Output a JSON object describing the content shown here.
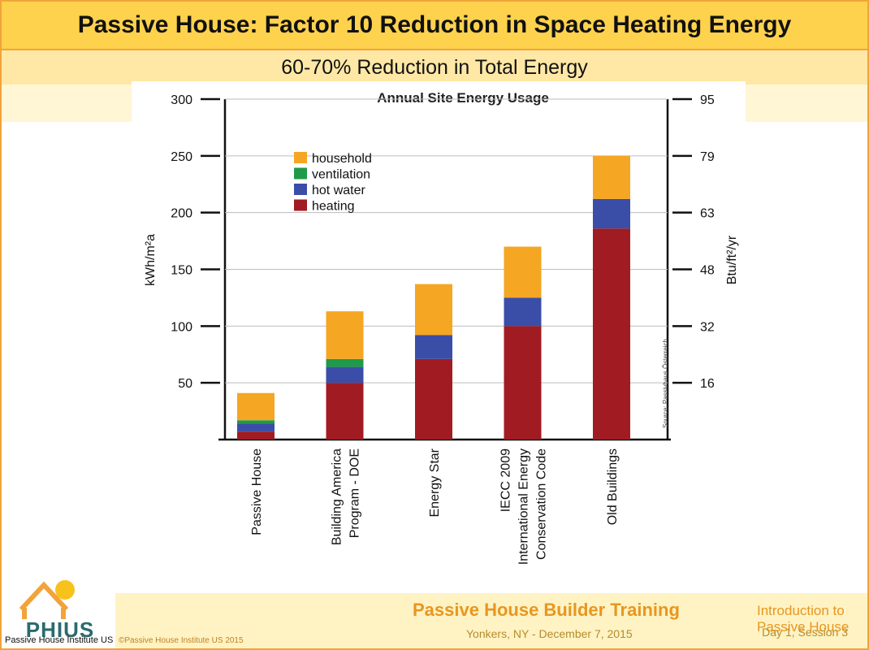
{
  "slide": {
    "title": "Passive House: Factor 10 Reduction in Space Heating Energy",
    "subtitle": "60-70% Reduction in Total Energy"
  },
  "chart_data": {
    "type": "bar",
    "stacked": true,
    "title": "Annual Site Energy Usage",
    "categories": [
      [
        "Passive House"
      ],
      [
        "Building America",
        "Program - DOE"
      ],
      [
        "Energy Star"
      ],
      [
        "IECC 2009",
        "International Energy",
        "Conservation Code"
      ],
      [
        "Old Buildings"
      ]
    ],
    "series": [
      {
        "name": "heating",
        "color": "#a01c22",
        "values": [
          7,
          50,
          71,
          100,
          186
        ]
      },
      {
        "name": "hot water",
        "color": "#3a4ea8",
        "values": [
          7,
          14,
          21,
          25,
          26
        ]
      },
      {
        "name": "ventilation",
        "color": "#1f9a4a",
        "values": [
          3,
          7,
          0,
          0,
          0
        ]
      },
      {
        "name": "household",
        "color": "#f5a623",
        "values": [
          24,
          42,
          45,
          45,
          38
        ]
      }
    ],
    "legend_order": [
      "household",
      "ventilation",
      "hot water",
      "heating"
    ],
    "legend_position": "top-left",
    "ylabel_left": "kWh/m²a",
    "ylabel_right": "Btu/ft²/yr",
    "ylim": [
      0,
      300
    ],
    "left_ticks": [
      50,
      100,
      150,
      200,
      250,
      300
    ],
    "right_ticks": [
      {
        "value": 16,
        "at": 50
      },
      {
        "value": 32,
        "at": 100
      },
      {
        "value": 48,
        "at": 150
      },
      {
        "value": 63,
        "at": 200
      },
      {
        "value": 79,
        "at": 250
      },
      {
        "value": 95,
        "at": 300
      }
    ],
    "source_note": "Source: Passivhaus Österreich",
    "grid": true
  },
  "footer": {
    "logo_text": "PHIUS",
    "org_name": "Passive House Institute US",
    "copyright": "©Passive House Institute US 2015",
    "training_title": "Passive House Builder Training",
    "training_location": "Yonkers, NY -  December 7, 2015",
    "course": "Introduction to Passive House",
    "session": "Day 1, Session 3"
  }
}
